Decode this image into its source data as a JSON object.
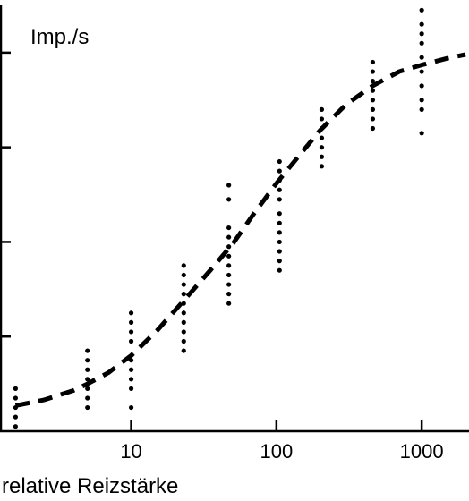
{
  "chart_data": {
    "type": "scatter",
    "title": "",
    "ylabel": "Imp./s",
    "xlabel": "relative Reizstärke",
    "x_scale": "log",
    "xlim": [
      1.25,
      2000
    ],
    "ylim": [
      0,
      4.5
    ],
    "x_ticks": [
      10,
      100,
      1000
    ],
    "x_tick_labels": [
      "10",
      "100",
      "1000"
    ],
    "y_ticks": [
      1,
      2,
      3,
      4
    ],
    "y_tick_labels": [],
    "grid": false,
    "legend": "none",
    "series": [
      {
        "kind": "points",
        "points": [
          {
            "x": 1.6,
            "y": [
              0.05,
              0.15,
              0.25,
              0.35,
              0.45
            ]
          },
          {
            "x": 5,
            "y": [
              0.25,
              0.35,
              0.45,
              0.55,
              0.65,
              0.75,
              0.85
            ]
          },
          {
            "x": 10,
            "y": [
              0.25,
              0.45,
              0.55,
              0.65,
              0.75,
              0.95,
              1.05,
              1.15,
              1.25
            ]
          },
          {
            "x": 23,
            "y": [
              0.85,
              0.95,
              1.05,
              1.15,
              1.25,
              1.35,
              1.45,
              1.55,
              1.65,
              1.75
            ]
          },
          {
            "x": 47,
            "y": [
              1.35,
              1.45,
              1.55,
              1.65,
              1.75,
              1.85,
              1.95,
              2.05,
              2.15,
              2.45,
              2.6
            ]
          },
          {
            "x": 105,
            "y": [
              1.7,
              1.8,
              1.9,
              2.0,
              2.1,
              2.2,
              2.3,
              2.45,
              2.55,
              2.65,
              2.75,
              2.85
            ]
          },
          {
            "x": 205,
            "y": [
              2.8,
              2.9,
              3.0,
              3.1,
              3.2,
              3.3,
              3.4
            ]
          },
          {
            "x": 460,
            "y": [
              3.2,
              3.3,
              3.4,
              3.5,
              3.6,
              3.7,
              3.8,
              3.9
            ]
          },
          {
            "x": 1000,
            "y": [
              3.15,
              3.4,
              3.5,
              3.65,
              3.8,
              3.95,
              4.1,
              4.2,
              4.3,
              4.45
            ]
          }
        ]
      },
      {
        "kind": "fit-curve",
        "style": "dashed",
        "x": [
          1.6,
          2.5,
          4,
          5,
          7,
          10,
          15,
          23,
          35,
          50,
          70,
          100,
          150,
          200,
          300,
          460,
          700,
          1000,
          1500,
          2000
        ],
        "y": [
          0.27,
          0.33,
          0.43,
          0.5,
          0.62,
          0.8,
          1.06,
          1.38,
          1.7,
          1.98,
          2.3,
          2.62,
          2.95,
          3.18,
          3.45,
          3.65,
          3.8,
          3.87,
          3.94,
          3.98
        ]
      }
    ]
  }
}
